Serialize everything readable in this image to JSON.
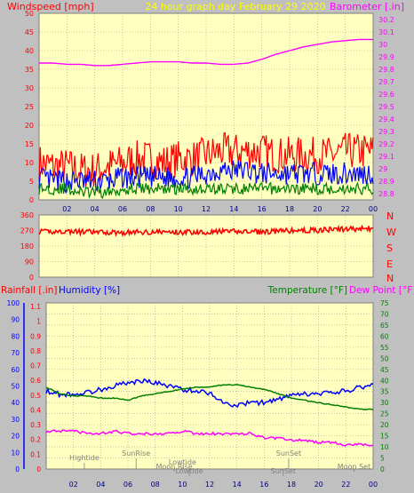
{
  "title": "24 hour graph day   February 29 2020",
  "colors": {
    "background": "#c0c0c0",
    "plot_bg": "#ffffc0",
    "grid": "#a0a0a0",
    "windspeed": "#ff0000",
    "gust": "#0000ff",
    "avg": "#008000",
    "barometer": "#ff00ff",
    "title": "#ffff00",
    "direction": "#ff0000",
    "rain": "#ff0000",
    "humidity": "#0000ff",
    "temperature": "#008000",
    "dewpoint": "#ff00ff",
    "events": "#808080"
  },
  "chart_data": [
    {
      "id": "wind",
      "type": "line",
      "title": "24 hour graph day   February 29 2020",
      "left_axis_label": "Windspeed [mph]",
      "right_axis_label": "Barometer [.in]",
      "x_ticks": [
        "02",
        "04",
        "06",
        "08",
        "10",
        "12",
        "14",
        "16",
        "18",
        "20",
        "22",
        "00"
      ],
      "left_ticks": [
        "0",
        "5",
        "10",
        "15",
        "20",
        "25",
        "30",
        "35",
        "40",
        "45",
        "50"
      ],
      "right_ticks": [
        "28.8",
        "28.9",
        "29",
        "29.1",
        "29.2",
        "29.3",
        "29.4",
        "29.5",
        "29.6",
        "29.7",
        "29.8",
        "29.9",
        "30",
        "30.1",
        "30.2"
      ],
      "ylim_left": [
        0,
        50
      ],
      "ylim_right": [
        28.75,
        30.25
      ],
      "x_hours": [
        0,
        1,
        2,
        3,
        4,
        5,
        6,
        7,
        8,
        9,
        10,
        11,
        12,
        13,
        14,
        15,
        16,
        17,
        18,
        19,
        20,
        21,
        22,
        23,
        24
      ],
      "series": [
        {
          "key": "windspeed",
          "values": [
            10,
            9,
            9,
            8,
            8,
            9,
            10,
            11,
            11,
            10,
            11,
            11,
            12,
            13,
            13,
            13,
            13,
            12,
            12,
            12,
            12,
            12,
            13,
            13,
            13
          ]
        },
        {
          "key": "gust",
          "values": [
            6,
            5,
            5,
            5,
            5,
            5,
            6,
            6,
            6,
            6,
            6,
            6,
            7,
            8,
            8,
            8,
            7,
            7,
            7,
            7,
            7,
            7,
            7,
            7,
            7
          ]
        },
        {
          "key": "avg",
          "values": [
            3,
            3,
            3,
            2,
            2,
            2,
            3,
            3,
            3,
            3,
            3,
            3,
            3,
            3,
            3,
            3,
            3,
            3,
            3,
            3,
            3,
            3,
            3,
            3,
            3
          ]
        },
        {
          "key": "barometer",
          "values": [
            29.85,
            29.85,
            29.84,
            29.84,
            29.83,
            29.83,
            29.84,
            29.85,
            29.86,
            29.86,
            29.86,
            29.85,
            29.85,
            29.84,
            29.84,
            29.85,
            29.88,
            29.92,
            29.95,
            29.98,
            30.0,
            30.02,
            30.03,
            30.04,
            30.04
          ]
        }
      ]
    },
    {
      "id": "direction",
      "type": "line",
      "right_axis_label": [
        "N",
        "W",
        "S",
        "E",
        "N"
      ],
      "left_ticks": [
        "360",
        "270",
        "180",
        "90",
        "0"
      ],
      "ylim": [
        0,
        360
      ],
      "x_hours": [
        0,
        2,
        4,
        6,
        8,
        10,
        12,
        14,
        16,
        18,
        20,
        22,
        24
      ],
      "values": [
        262,
        265,
        260,
        258,
        262,
        260,
        262,
        265,
        262,
        268,
        272,
        278,
        282
      ]
    },
    {
      "id": "atmos",
      "type": "line",
      "rain_label": "Rainfall [.in]",
      "humidity_label": "Humidity [%]",
      "temperature_label": "Temperature [°F]",
      "dewpoint_label": "Dew Point [°F]",
      "x_ticks": [
        "02",
        "04",
        "06",
        "08",
        "10",
        "12",
        "14",
        "16",
        "18",
        "20",
        "22",
        "00"
      ],
      "humidity_ticks": [
        "0",
        "10",
        "20",
        "30",
        "40",
        "50",
        "60",
        "70",
        "80",
        "90",
        "100"
      ],
      "rain_ticks": [
        "0",
        "0.1",
        "0.2",
        "0.3",
        "0.4",
        "0.5",
        "0.6",
        "0.7",
        "0.8",
        "0.9",
        "1",
        "1.1"
      ],
      "temp_ticks": [
        "0",
        "5",
        "10",
        "15",
        "20",
        "25",
        "30",
        "35",
        "40",
        "45",
        "50",
        "55",
        "60",
        "65",
        "70",
        "75"
      ],
      "ylim_humidity": [
        0,
        100
      ],
      "ylim_temp": [
        0,
        75
      ],
      "x_hours": [
        0,
        1,
        2,
        3,
        4,
        5,
        6,
        7,
        8,
        9,
        10,
        11,
        12,
        13,
        14,
        15,
        16,
        17,
        18,
        19,
        20,
        21,
        22,
        23,
        24
      ],
      "series": [
        {
          "key": "humidity",
          "values": [
            47,
            45,
            45,
            46,
            48,
            50,
            52,
            53,
            52,
            50,
            48,
            47,
            46,
            40,
            38,
            40,
            40,
            42,
            44,
            45,
            45,
            46,
            47,
            49,
            51
          ]
        },
        {
          "key": "temperature",
          "values": [
            37,
            34,
            33,
            33,
            32,
            32,
            31,
            33,
            34,
            35,
            36,
            37,
            37,
            38,
            38,
            37,
            36,
            34,
            32,
            31,
            30,
            29,
            28,
            27,
            27
          ]
        },
        {
          "key": "dewpoint",
          "values": [
            17,
            17,
            17,
            16,
            16,
            17,
            16,
            16,
            16,
            16,
            17,
            16,
            16,
            16,
            16,
            16,
            14,
            14,
            13,
            13,
            12,
            12,
            11,
            11,
            11
          ]
        }
      ],
      "events": [
        {
          "label": "Hightide",
          "hour": 2.8,
          "row": 2
        },
        {
          "label": "SunRise",
          "hour": 6.6,
          "row": 1
        },
        {
          "label": "Lowtide",
          "hour": 10.0,
          "row": 3
        },
        {
          "label": "Moon Rise",
          "hour": 9.4,
          "row": 4
        },
        {
          "label": "Lowtide",
          "hour": 10.5,
          "row": 5
        },
        {
          "label": "SunSet",
          "hour": 17.8,
          "row": 1
        },
        {
          "label": "SunSet",
          "hour": 17.4,
          "row": 5
        },
        {
          "label": "Moon Set",
          "hour": 22.6,
          "row": 4
        }
      ]
    }
  ]
}
